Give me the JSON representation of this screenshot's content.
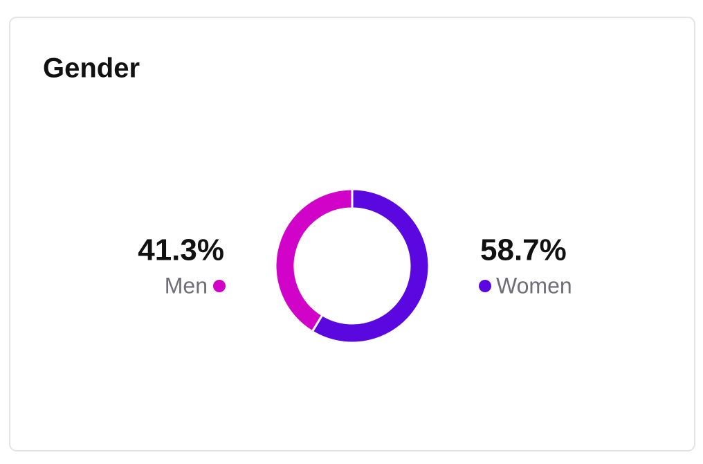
{
  "chart_data": {
    "type": "donut",
    "title": "Gender",
    "categories": [
      "Men",
      "Women"
    ],
    "values": [
      41.3,
      58.7
    ],
    "value_labels": [
      "41.3%",
      "58.7%"
    ],
    "colors": [
      "#d203c9",
      "#5a07e0"
    ]
  }
}
